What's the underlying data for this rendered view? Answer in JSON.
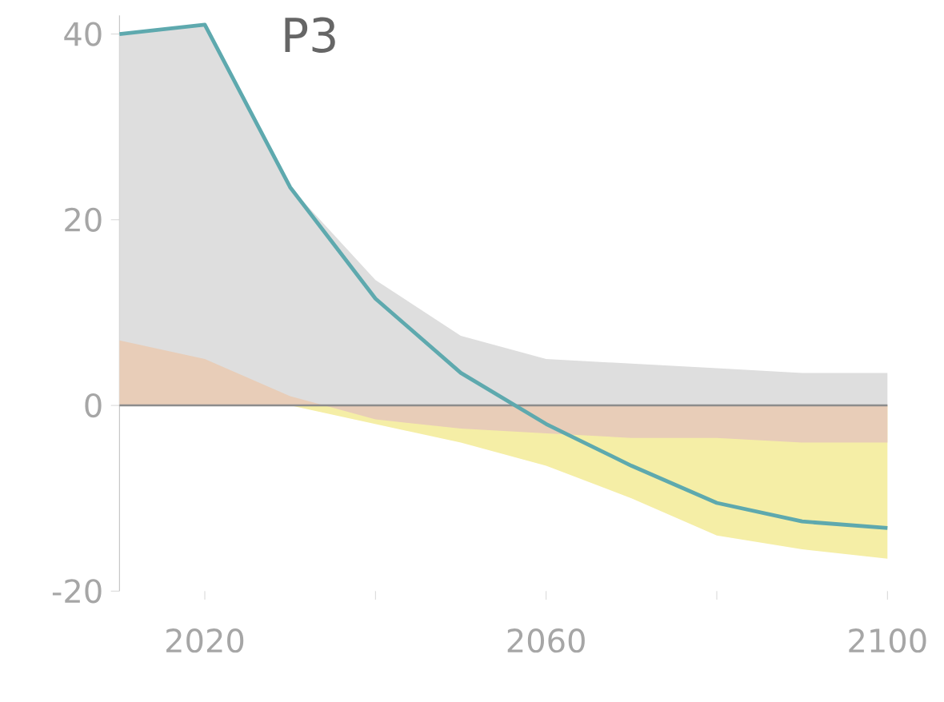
{
  "chart_data": {
    "type": "area",
    "title": "P3",
    "x": [
      2010,
      2020,
      2030,
      2040,
      2050,
      2060,
      2070,
      2080,
      2090,
      2100
    ],
    "series": [
      {
        "color": "#dedede",
        "values": [
          40,
          41,
          23.5,
          13.5,
          7.5,
          5,
          4.5,
          4,
          3.5,
          3.5
        ]
      },
      {
        "color": "#f5eea6",
        "values": [
          0,
          0,
          0,
          -2,
          -4,
          -6.5,
          -10,
          -14,
          -15.5,
          -16.5
        ]
      },
      {
        "color": "#e8cdb8",
        "values": [
          7,
          5,
          1,
          -1.5,
          -2.5,
          -3,
          -3.5,
          -3.5,
          -4,
          -4
        ]
      },
      {
        "type": "line",
        "color": "#5ea9ae",
        "values": [
          40,
          41,
          23.5,
          11.5,
          3.5,
          -2,
          -6.5,
          -10.5,
          -12.5,
          -13.2
        ]
      }
    ],
    "xlim": [
      2010,
      2100
    ],
    "xticks": [
      2020,
      {
        "value": 2040,
        "label": null
      },
      2060,
      {
        "value": 2080,
        "label": null
      },
      2100
    ],
    "ylim": [
      -20,
      42
    ],
    "yticks": [
      -20,
      0,
      20,
      40
    ],
    "ref_lines": [
      {
        "axis": "y",
        "value": 0,
        "color": "#8c8c8c"
      }
    ],
    "grid": false
  }
}
